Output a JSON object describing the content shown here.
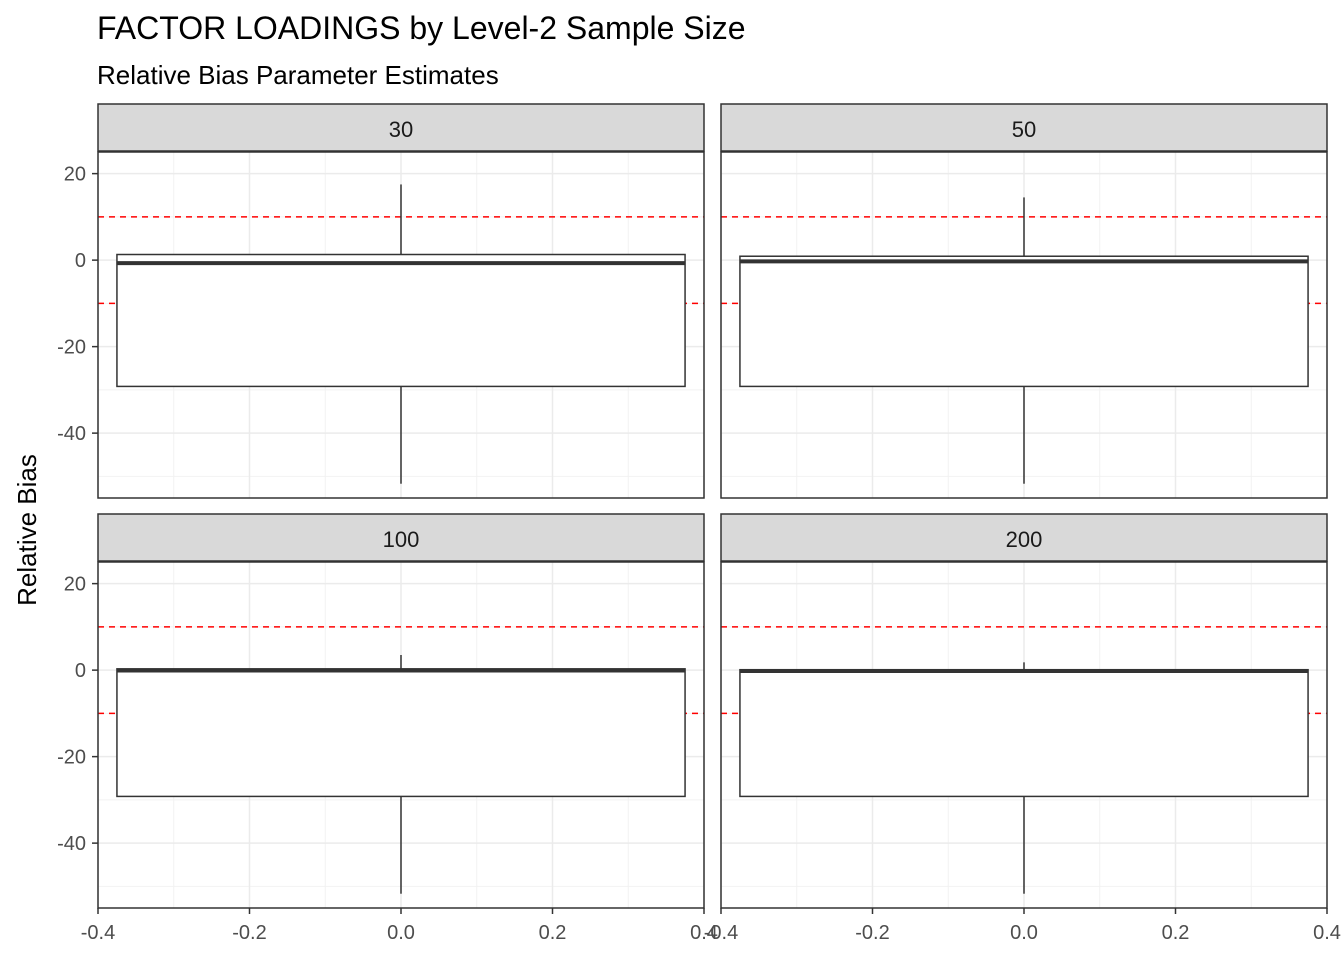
{
  "chart_data": {
    "type": "boxplot",
    "title": "FACTOR LOADINGS by Level-2 Sample Size",
    "subtitle": "Relative Bias Parameter Estimates",
    "xlabel": "",
    "ylabel": "Relative Bias",
    "xlim": [
      -0.4,
      0.4
    ],
    "ylim": [
      -55,
      25
    ],
    "x_ticks": [
      -0.4,
      -0.2,
      0.0,
      0.2,
      0.4
    ],
    "x_tick_labels": [
      "-0.4",
      "-0.2",
      "0.0",
      "0.2",
      "0.4"
    ],
    "y_ticks": [
      20,
      0,
      -20,
      -40
    ],
    "y_tick_labels": [
      "20",
      "0",
      "-20",
      "-40"
    ],
    "reference_lines": [
      10,
      -10
    ],
    "reference_line_color": "#ff0000",
    "facet_strip_color": "#d9d9d9",
    "grid": true,
    "box_x_range": [
      -0.375,
      0.375
    ],
    "panels": [
      {
        "label": "30",
        "whisker_high": 17.5,
        "q3": 1.3,
        "median": -0.7,
        "q1": -29.2,
        "whisker_low": -51.7
      },
      {
        "label": "50",
        "whisker_high": 14.5,
        "q3": 0.9,
        "median": -0.3,
        "q1": -29.2,
        "whisker_low": -51.7
      },
      {
        "label": "100",
        "whisker_high": 3.5,
        "q3": 0.3,
        "median": -0.1,
        "q1": -29.2,
        "whisker_low": -51.7
      },
      {
        "label": "200",
        "whisker_high": 1.8,
        "q3": 0.1,
        "median": -0.2,
        "q1": -29.2,
        "whisker_low": -51.7
      }
    ]
  }
}
